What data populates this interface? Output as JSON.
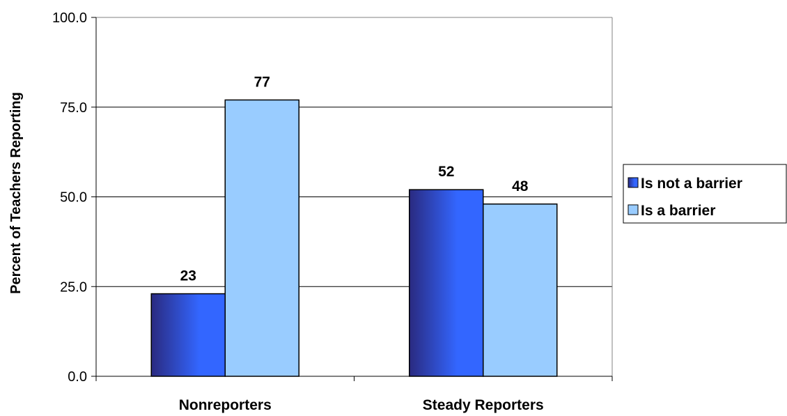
{
  "chart_data": {
    "type": "bar",
    "categories": [
      "Nonreporters",
      "Steady Reporters"
    ],
    "series": [
      {
        "name": "Is not a barrier",
        "values": [
          23,
          52
        ],
        "labels": [
          "23",
          "52"
        ],
        "color": "#3355ee"
      },
      {
        "name": "Is a barrier",
        "values": [
          77,
          48
        ],
        "labels": [
          "77",
          "48"
        ],
        "color": "#99ccff"
      }
    ],
    "title": "",
    "xlabel": "",
    "ylabel": "Percent of Teachers Reporting",
    "ylim": [
      0,
      100
    ],
    "yticks": [
      "0.0",
      "25.0",
      "50.0",
      "75.0",
      "100.0"
    ],
    "grid": true,
    "legend_position": "right"
  }
}
